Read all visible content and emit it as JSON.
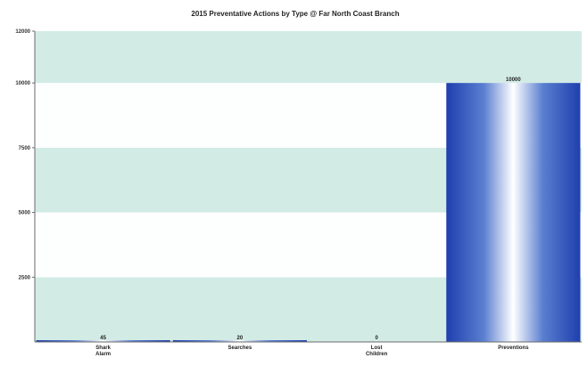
{
  "chart_data": {
    "type": "bar",
    "title": "2015 Preventative Actions by Type @ Far North Coast Branch",
    "categories": [
      [
        "Shark",
        "Alarm"
      ],
      [
        "Searches"
      ],
      [
        "Lost",
        "Children"
      ],
      [
        "Preventions"
      ]
    ],
    "values": [
      45,
      20,
      0,
      10000
    ],
    "data_labels": [
      "45",
      "20",
      "0",
      "10000"
    ],
    "ylim": [
      0,
      12000
    ],
    "yticks": [
      2500,
      5000,
      7500,
      10000,
      12000
    ],
    "ytick_labels": [
      "2500",
      "5000",
      "7500",
      "10000",
      "12000"
    ],
    "grid": "alternating horizontal bands",
    "colors": {
      "band_light": "#d2ebe5",
      "band_white": "#fdfefe",
      "bar_dark": "#1f3fae",
      "bar_light": "#ffffff",
      "axis": "#6b6b6b"
    }
  }
}
